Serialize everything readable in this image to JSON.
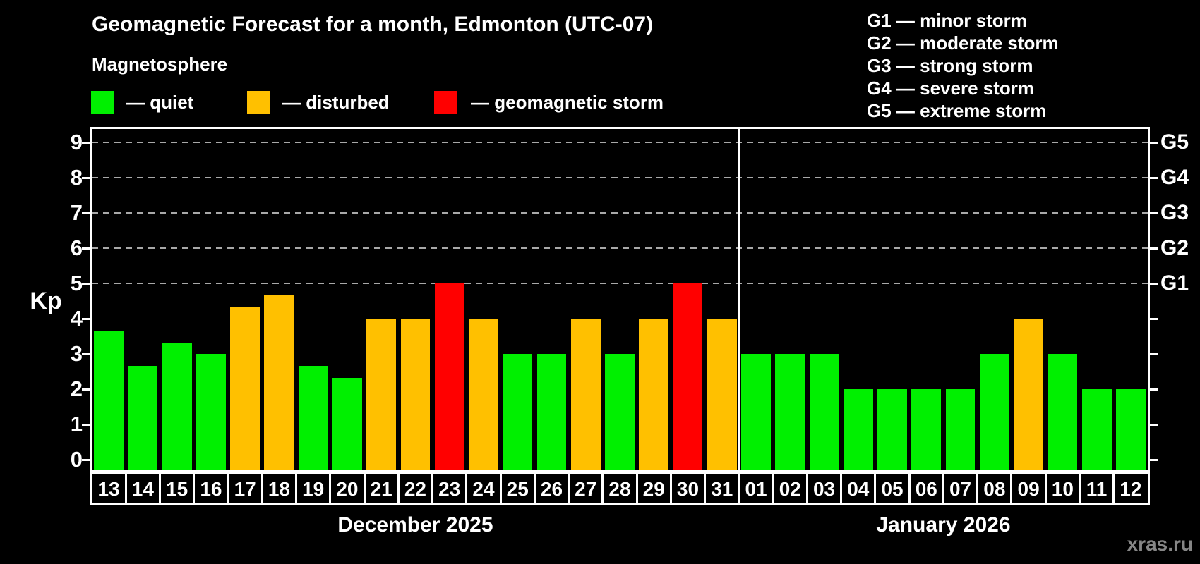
{
  "header": {
    "title": "Geomagnetic Forecast for a month, Edmonton (UTC-07)",
    "subtitle": "Magnetosphere",
    "legend": [
      {
        "status": "quiet",
        "label": "— quiet"
      },
      {
        "status": "disturbed",
        "label": "— disturbed"
      },
      {
        "status": "storm",
        "label": "— geomagnetic storm"
      }
    ],
    "g_scale_legend": [
      "G1 — minor storm",
      "G2 — moderate storm",
      "G3 — strong storm",
      "G4 — severe storm",
      "G5 — extreme storm"
    ]
  },
  "chart_data": {
    "type": "bar",
    "ylabel": "Kp",
    "ylim": [
      0,
      9.4
    ],
    "yticks": [
      0,
      1,
      2,
      3,
      4,
      5,
      6,
      7,
      8,
      9
    ],
    "gridlines_at": [
      5,
      6,
      7,
      8,
      9
    ],
    "grid": "dashed horizontal at storm levels only",
    "right_axis_labels": [
      {
        "value": 5,
        "label": "G1"
      },
      {
        "value": 6,
        "label": "G2"
      },
      {
        "value": 7,
        "label": "G3"
      },
      {
        "value": 8,
        "label": "G4"
      },
      {
        "value": 9,
        "label": "G5"
      }
    ],
    "months": [
      {
        "label": "December 2025",
        "days": 19
      },
      {
        "label": "January 2026",
        "days": 12
      }
    ],
    "categories": [
      "13",
      "14",
      "15",
      "16",
      "17",
      "18",
      "19",
      "20",
      "21",
      "22",
      "23",
      "24",
      "25",
      "26",
      "27",
      "28",
      "29",
      "30",
      "31",
      "01",
      "02",
      "03",
      "04",
      "05",
      "06",
      "07",
      "08",
      "09",
      "10",
      "11",
      "12"
    ],
    "values": [
      3.67,
      2.67,
      3.33,
      3,
      4.33,
      4.67,
      2.67,
      2.33,
      4,
      4,
      5,
      4,
      3,
      3,
      4,
      3,
      4,
      5,
      4,
      3,
      3,
      3,
      2,
      2,
      2,
      2,
      3,
      4,
      3,
      2,
      2
    ],
    "statuses": [
      "quiet",
      "quiet",
      "quiet",
      "quiet",
      "disturbed",
      "disturbed",
      "quiet",
      "quiet",
      "disturbed",
      "disturbed",
      "storm",
      "disturbed",
      "quiet",
      "quiet",
      "disturbed",
      "quiet",
      "disturbed",
      "storm",
      "disturbed",
      "quiet",
      "quiet",
      "quiet",
      "quiet",
      "quiet",
      "quiet",
      "quiet",
      "quiet",
      "disturbed",
      "quiet",
      "quiet",
      "quiet"
    ],
    "colors": {
      "quiet": "#00f000",
      "disturbed": "#ffc000",
      "storm": "#ff0000"
    }
  },
  "watermark": "xras.ru"
}
